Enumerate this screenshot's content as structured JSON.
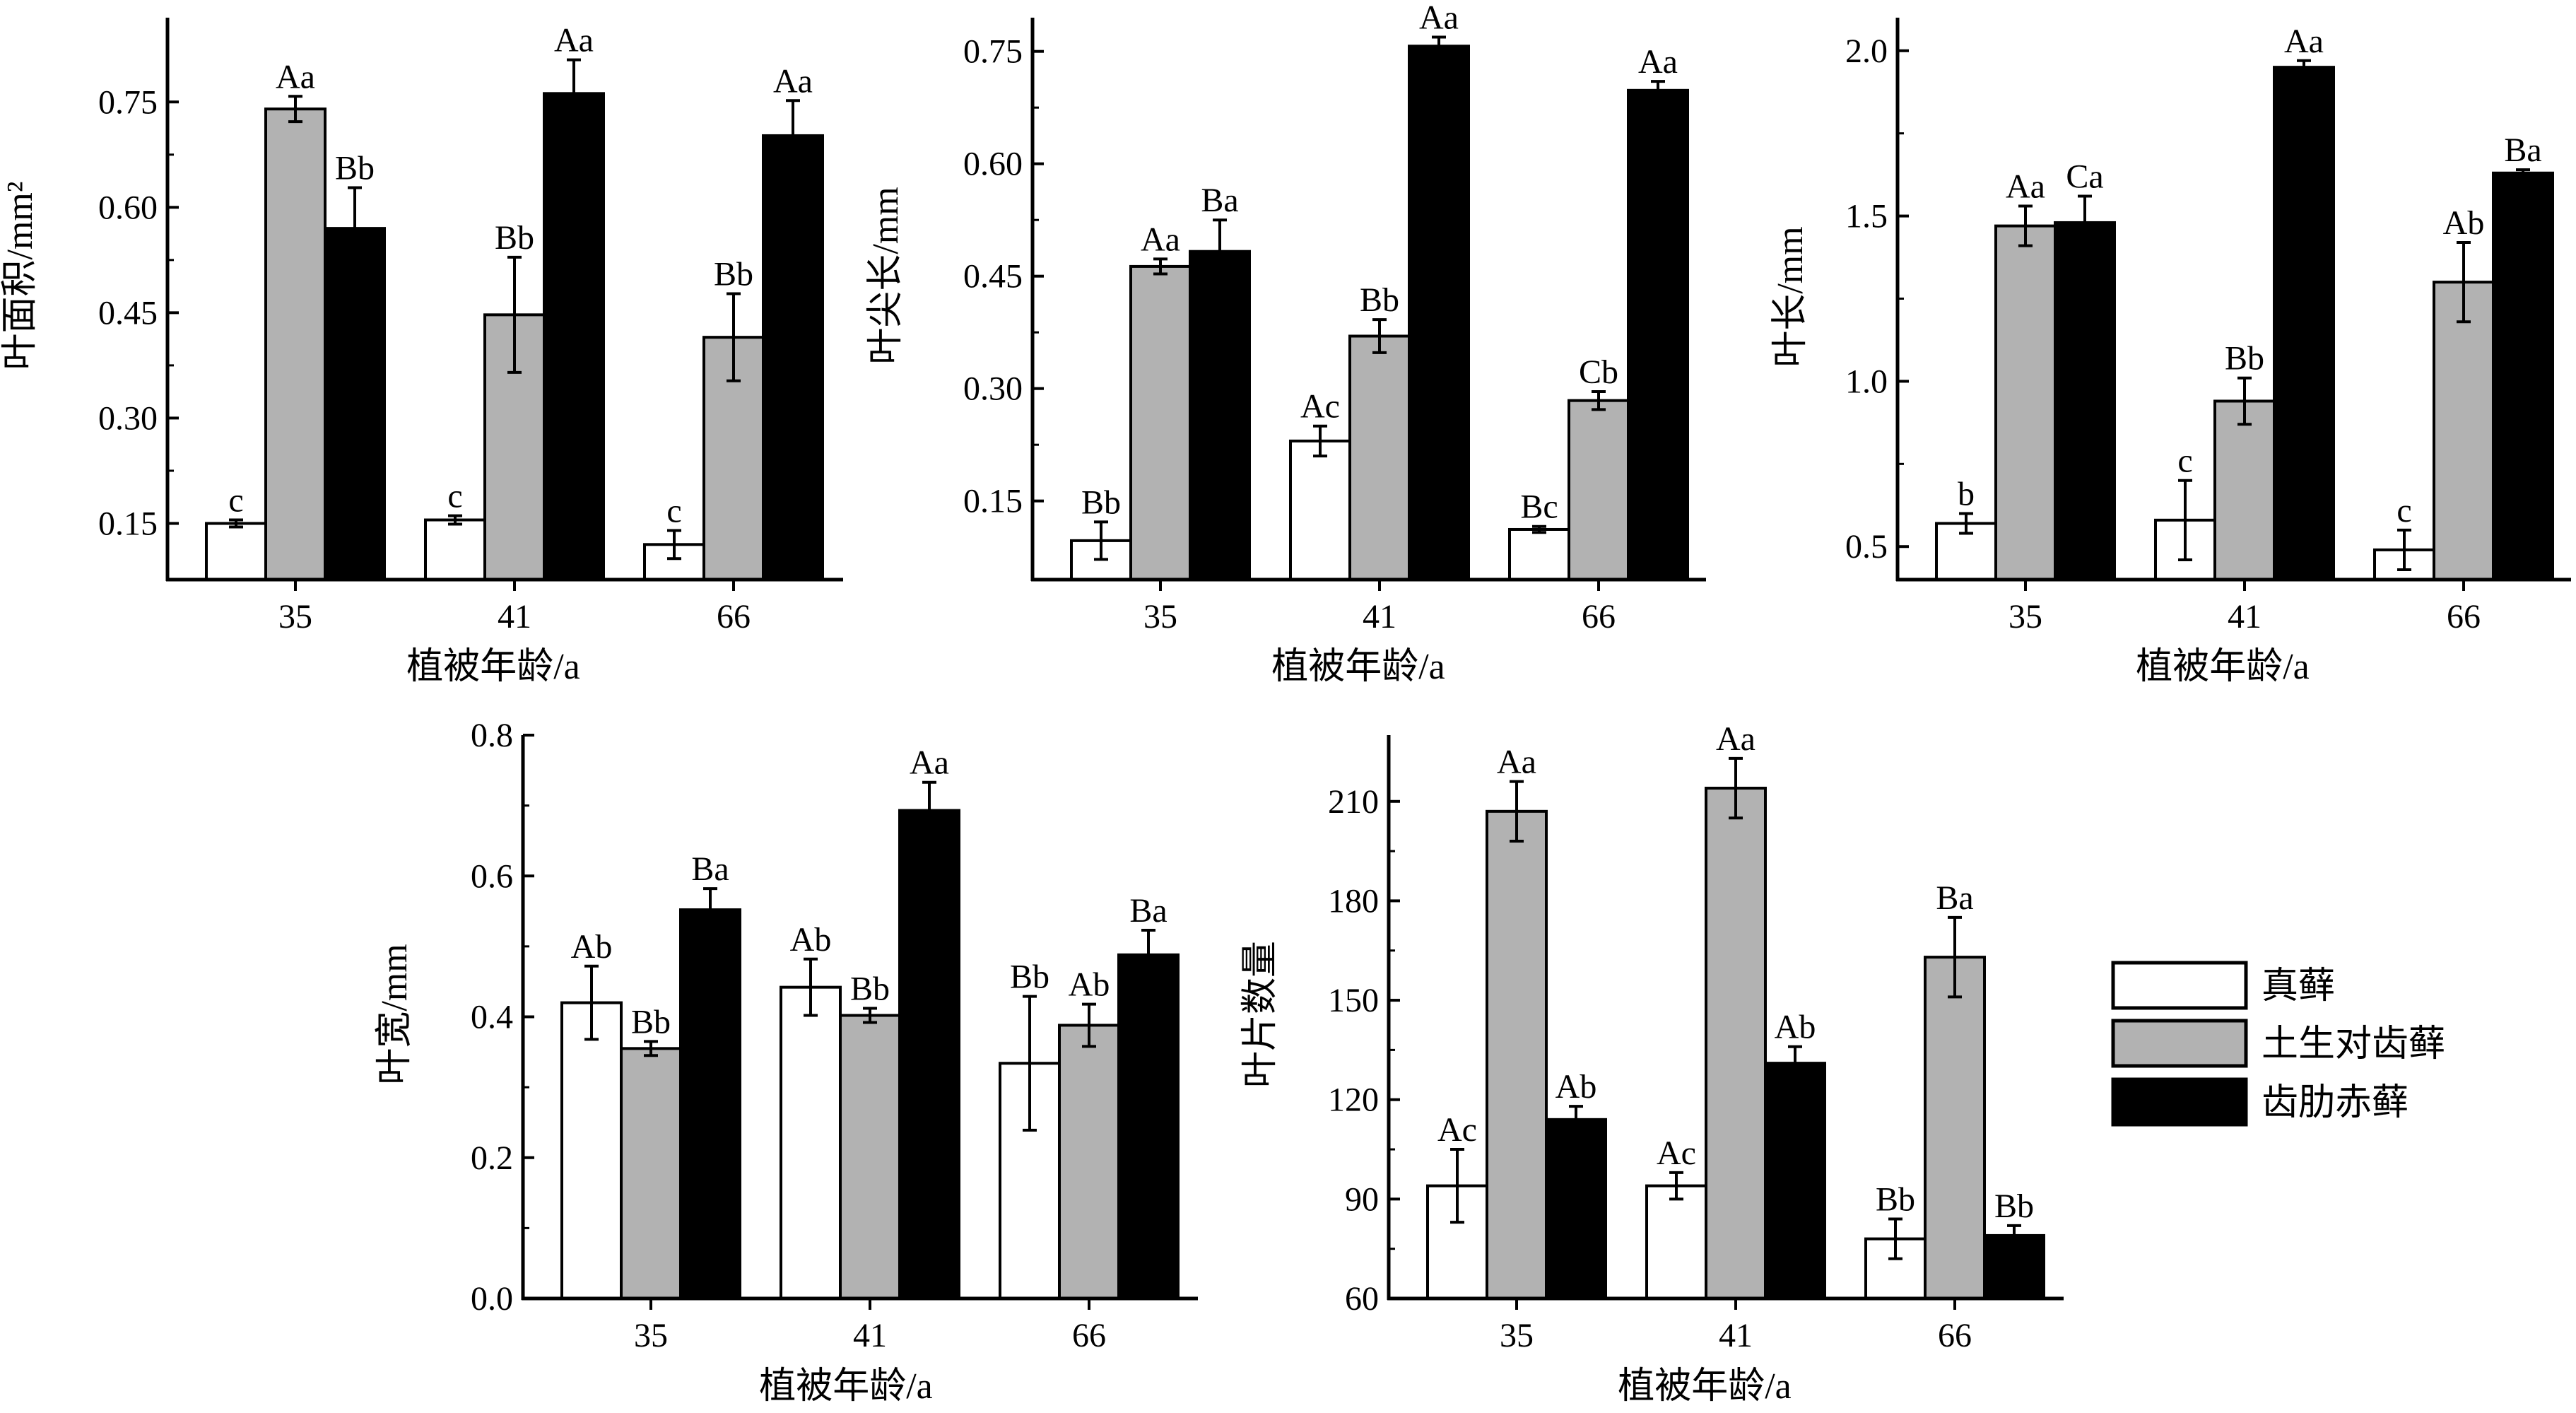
{
  "colors": {
    "zhen_xian": "#ffffff",
    "tu_sheng": "#b2b2b2",
    "chi_lei": "#000000",
    "stroke": "#000000"
  },
  "legend": {
    "items": [
      {
        "key": "zhen_xian",
        "label": "真藓"
      },
      {
        "key": "tu_sheng",
        "label": "土生对齿藓"
      },
      {
        "key": "chi_lei",
        "label": "齿肋赤藓"
      }
    ]
  },
  "chart_data": [
    {
      "type": "bar",
      "ylabel": "叶面积/mm²",
      "xlabel": "植被年龄/a",
      "categories": [
        "35",
        "41",
        "66"
      ],
      "ylim": [
        0.07,
        0.87
      ],
      "yticks": [
        0.15,
        0.3,
        0.45,
        0.6,
        0.75
      ],
      "ytick_labels": [
        "0.15",
        "0.30",
        "0.45",
        "0.60",
        "0.75"
      ],
      "series": [
        {
          "name": "真藓",
          "values": [
            0.15,
            0.155,
            0.12
          ],
          "errors": [
            0.005,
            0.006,
            0.02
          ],
          "labels": [
            "c",
            "c",
            "c"
          ]
        },
        {
          "name": "土生对齿藓",
          "values": [
            0.74,
            0.447,
            0.415
          ],
          "errors": [
            0.018,
            0.082,
            0.062
          ],
          "labels": [
            "Aa",
            "Bb",
            "Bb"
          ]
        },
        {
          "name": "齿肋赤藓",
          "values": [
            0.57,
            0.762,
            0.702
          ],
          "errors": [
            0.058,
            0.048,
            0.05
          ],
          "labels": [
            "Bb",
            "Aa",
            "Aa"
          ]
        }
      ]
    },
    {
      "type": "bar",
      "ylabel": "叶尖长/mm",
      "xlabel": "植被年龄/a",
      "categories": [
        "35",
        "41",
        "66"
      ],
      "ylim": [
        0.045,
        0.795
      ],
      "yticks": [
        0.15,
        0.3,
        0.45,
        0.6,
        0.75
      ],
      "ytick_labels": [
        "0.15",
        "0.30",
        "0.45",
        "0.60",
        "0.75"
      ],
      "series": [
        {
          "name": "真藓",
          "values": [
            0.097,
            0.23,
            0.112
          ],
          "errors": [
            0.025,
            0.02,
            0.004
          ],
          "labels": [
            "Bb",
            "Ac",
            "Bc"
          ]
        },
        {
          "name": "土生对齿藓",
          "values": [
            0.463,
            0.37,
            0.284
          ],
          "errors": [
            0.01,
            0.022,
            0.012
          ],
          "labels": [
            "Aa",
            "Bb",
            "Cb"
          ]
        },
        {
          "name": "齿肋赤藓",
          "values": [
            0.483,
            0.757,
            0.698
          ],
          "errors": [
            0.042,
            0.012,
            0.012
          ],
          "labels": [
            "Ba",
            "Aa",
            "Aa"
          ]
        }
      ]
    },
    {
      "type": "bar",
      "ylabel": "叶长/mm",
      "xlabel": "植被年龄/a",
      "categories": [
        "35",
        "41",
        "66"
      ],
      "ylim": [
        0.4,
        2.1
      ],
      "yticks": [
        0.5,
        1.0,
        1.5,
        2.0
      ],
      "ytick_labels": [
        "0.5",
        "1.0",
        "1.5",
        "2.0"
      ],
      "series": [
        {
          "name": "真藓",
          "values": [
            0.57,
            0.58,
            0.49
          ],
          "errors": [
            0.03,
            0.12,
            0.06
          ],
          "labels": [
            "b",
            "c",
            "c"
          ]
        },
        {
          "name": "土生对齿藓",
          "values": [
            1.47,
            0.94,
            1.3
          ],
          "errors": [
            0.06,
            0.07,
            0.12
          ],
          "labels": [
            "Aa",
            "Bb",
            "Ab"
          ]
        },
        {
          "name": "齿肋赤藓",
          "values": [
            1.48,
            1.95,
            1.63
          ],
          "errors": [
            0.08,
            0.02,
            0.01
          ],
          "labels": [
            "Ca",
            "Aa",
            "Ba"
          ]
        }
      ]
    },
    {
      "type": "bar",
      "ylabel": "叶宽/mm",
      "xlabel": "植被年龄/a",
      "categories": [
        "35",
        "41",
        "66"
      ],
      "ylim": [
        0.0,
        0.8
      ],
      "yticks": [
        0.0,
        0.2,
        0.4,
        0.6,
        0.8
      ],
      "ytick_labels": [
        "0.0",
        "0.2",
        "0.4",
        "0.6",
        "0.8"
      ],
      "series": [
        {
          "name": "真藓",
          "values": [
            0.42,
            0.442,
            0.334
          ],
          "errors": [
            0.052,
            0.04,
            0.095
          ],
          "labels": [
            "Ab",
            "Ab",
            "Bb"
          ]
        },
        {
          "name": "土生对齿藓",
          "values": [
            0.355,
            0.402,
            0.388
          ],
          "errors": [
            0.01,
            0.01,
            0.03
          ],
          "labels": [
            "Bb",
            "Bb",
            "Ab"
          ]
        },
        {
          "name": "齿肋赤藓",
          "values": [
            0.552,
            0.693,
            0.488
          ],
          "errors": [
            0.03,
            0.04,
            0.035
          ],
          "labels": [
            "Ba",
            "Aa",
            "Ba"
          ]
        }
      ]
    },
    {
      "type": "bar",
      "ylabel": "叶片数量",
      "xlabel": "植被年龄/a",
      "categories": [
        "35",
        "41",
        "66"
      ],
      "ylim": [
        60,
        230
      ],
      "yticks": [
        60,
        90,
        120,
        150,
        180,
        210
      ],
      "ytick_labels": [
        "60",
        "90",
        "120",
        "150",
        "180",
        "210"
      ],
      "series": [
        {
          "name": "真藓",
          "values": [
            94,
            94,
            78
          ],
          "errors": [
            11,
            4,
            6
          ],
          "labels": [
            "Ac",
            "Ac",
            "Bb"
          ]
        },
        {
          "name": "土生对齿藓",
          "values": [
            207,
            214,
            163
          ],
          "errors": [
            9,
            9,
            12
          ],
          "labels": [
            "Aa",
            "Aa",
            "Ba"
          ]
        },
        {
          "name": "齿肋赤藓",
          "values": [
            114,
            131,
            79
          ],
          "errors": [
            4,
            5,
            3
          ],
          "labels": [
            "Ab",
            "Ab",
            "Bb"
          ]
        }
      ]
    }
  ]
}
